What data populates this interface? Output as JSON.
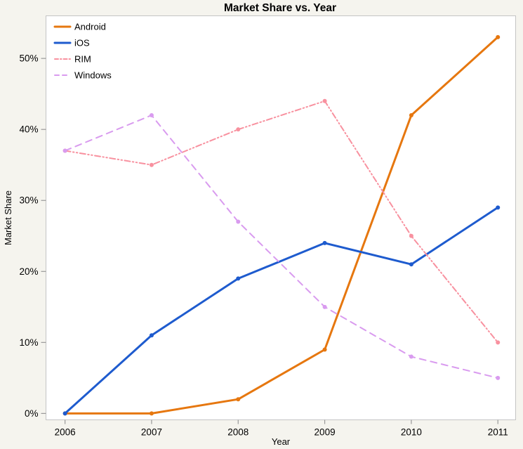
{
  "chart_data": {
    "type": "line",
    "title": "Market Share vs. Year",
    "xlabel": "Year",
    "ylabel": "Market Share",
    "x": [
      2006,
      2007,
      2008,
      2009,
      2010,
      2011
    ],
    "x_ticks": [
      2006,
      2007,
      2008,
      2009,
      2010,
      2011
    ],
    "y_ticks": [
      0,
      10,
      20,
      30,
      40,
      50
    ],
    "y_tick_suffix": "%",
    "xlim": [
      2005.78,
      2011.205
    ],
    "ylim": [
      -0.9,
      56
    ],
    "grid": false,
    "legend_position": "top-left",
    "series": [
      {
        "name": "Android",
        "values": [
          0,
          0,
          2,
          9,
          42,
          53
        ],
        "color": "#e6770f",
        "style": "solid",
        "width": 3
      },
      {
        "name": "iOS",
        "values": [
          0,
          11,
          19,
          24,
          21,
          29
        ],
        "color": "#1e5bce",
        "style": "solid",
        "width": 3
      },
      {
        "name": "RIM",
        "values": [
          37,
          35,
          40,
          44,
          25,
          10
        ],
        "color": "#f8919f",
        "style": "dash-dot-dot",
        "width": 2
      },
      {
        "name": "Windows",
        "values": [
          37,
          42,
          27,
          15,
          8,
          5
        ],
        "color": "#d99bef",
        "style": "dashed",
        "width": 2
      }
    ],
    "colors": {
      "page_background": "#f5f4ee",
      "plot_background": "#ffffff",
      "plot_border": "#c4c4c4",
      "tick": "#999999",
      "text": "#000000"
    }
  }
}
